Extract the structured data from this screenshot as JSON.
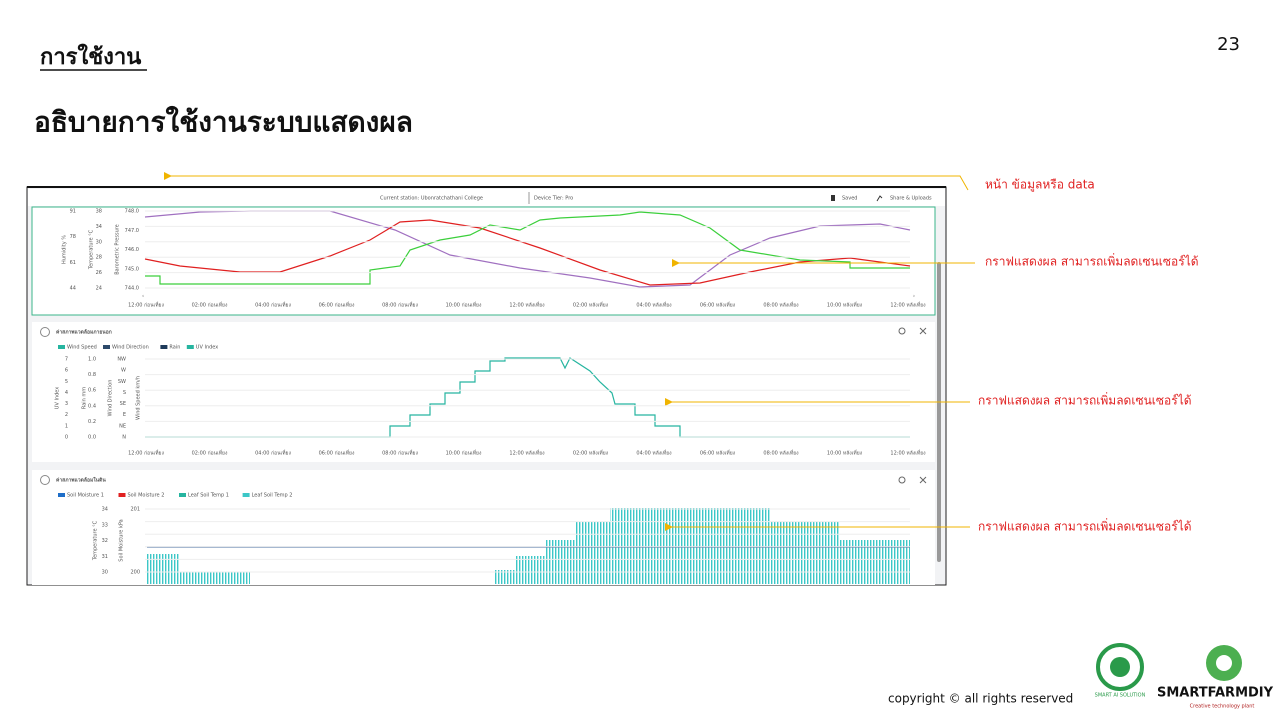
{
  "header": {
    "section": "การใช้งาน",
    "title": "อธิบายการใช้งานระบบแสดงผล",
    "page_number": "23"
  },
  "annotations": [
    "หน้า ข้อมูลหรือ data",
    "กราฟแสดงผล สามารถเพิ่มลดเซนเซอร์ได้",
    "กราฟแสดงผล สามารถเพิ่มลดเซนเซอร์ได้",
    "กราฟแสดงผล สามารถเพิ่มลดเซนเซอร์ได้"
  ],
  "screenshot": {
    "station": "Current station: Ubonratchathani College",
    "device_tier": "Device Tier: Pro",
    "saved": "Saved",
    "share": "Share & Uploads",
    "time_labels": [
      "12:00 ก่อนเที่ยง",
      "02:00 ก่อนเที่ยง",
      "04:00 ก่อนเที่ยง",
      "06:00 ก่อนเที่ยง",
      "08:00 ก่อนเที่ยง",
      "10:00 ก่อนเที่ยง",
      "12:00 หลังเที่ยง",
      "02:00 หลังเที่ยง",
      "04:00 หลังเที่ยง",
      "06:00 หลังเที่ยง",
      "08:00 หลังเที่ยง",
      "10:00 หลังเที่ยง",
      "12:00 หลังเที่ยง"
    ],
    "panels": [
      {
        "axis_titles": [
          "Humidity %",
          "Temperature °C",
          "Barometric Pressure"
        ],
        "tick_columns": [
          [
            "91",
            "78",
            "61",
            "44"
          ],
          [
            "38",
            "34",
            "30",
            "28",
            "26",
            "24"
          ],
          [
            "748.0",
            "747.0",
            "746.0",
            "745.0",
            "744.0"
          ]
        ]
      },
      {
        "title": "ค่าสภาพแวดล้อมภายนอก",
        "legend": [
          "Wind Speed",
          "Wind Direction",
          "Rain",
          "UV Index"
        ],
        "axis_titles": [
          "UV Index",
          "Rain mm",
          "Wind Direction",
          "Wind Speed km/h"
        ],
        "tick_columns": [
          [
            "7",
            "6",
            "5",
            "4",
            "3",
            "2",
            "1",
            "0"
          ],
          [
            "1.0",
            "0.8",
            "0.6",
            "0.4",
            "0.2",
            "0.0"
          ],
          [
            "NW",
            "W",
            "SW",
            "S",
            "SE",
            "E",
            "NE",
            "N"
          ]
        ]
      },
      {
        "title": "ค่าสภาพแวดล้อมในดิน",
        "legend": [
          "Soil Moisture 1",
          "Soil Moisture 2",
          "Leaf Soil Temp 1",
          "Leaf Soil Temp 2"
        ],
        "axis_titles": [
          "Temperature °C",
          "Soil Moisture kPa"
        ],
        "tick_columns": [
          [
            "34",
            "33",
            "32",
            "31",
            "30"
          ],
          [
            "201",
            "200"
          ]
        ]
      }
    ]
  },
  "footer": {
    "copyright": "copyright © all rights reserved",
    "logo1": "SMART AI SOLUTION",
    "logo2": "SMARTFARMDIY",
    "logo2_tagline": "Creative technology plant"
  }
}
